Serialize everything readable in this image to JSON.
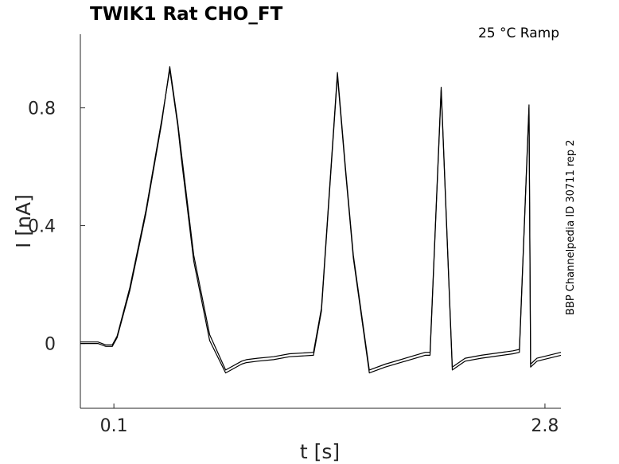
{
  "chart_data": {
    "type": "line",
    "title": "TWIK1  Rat  CHO_FT",
    "annotation": "25 °C  Ramp",
    "side_label": "BBP Channelpedia ID 30711 rep 2",
    "xlabel": "t [s]",
    "ylabel": "I [nA]",
    "xlim": [
      -0.11,
      2.9
    ],
    "ylim": [
      -0.22,
      1.05
    ],
    "x_ticks": [
      0.1,
      2.8
    ],
    "x_tick_labels": [
      "0.1",
      "2.8"
    ],
    "y_ticks": [
      0,
      0.4,
      0.8
    ],
    "y_tick_labels": [
      "0",
      "0.4",
      "0.8"
    ],
    "grid": false,
    "series": [
      {
        "x": [
          -0.11,
          0.0,
          0.05,
          0.09,
          0.12,
          0.2,
          0.3,
          0.4,
          0.45,
          0.5,
          0.52,
          0.6,
          0.7,
          0.8,
          0.9,
          0.93,
          1.0,
          1.1,
          1.2,
          1.35,
          1.4,
          1.5,
          1.55,
          1.6,
          1.7,
          1.8,
          2.05,
          2.08,
          2.15,
          2.22,
          2.3,
          2.4,
          2.6,
          2.64,
          2.7,
          2.71,
          2.75,
          2.9
        ],
        "y": [
          0.0,
          0.0,
          -0.01,
          -0.01,
          0.02,
          0.18,
          0.44,
          0.75,
          0.94,
          0.75,
          0.66,
          0.3,
          0.03,
          -0.09,
          -0.06,
          -0.055,
          -0.05,
          -0.045,
          -0.035,
          -0.03,
          0.12,
          0.92,
          0.6,
          0.3,
          -0.09,
          -0.07,
          -0.03,
          -0.03,
          0.87,
          -0.08,
          -0.05,
          -0.04,
          -0.025,
          -0.02,
          0.81,
          -0.07,
          -0.05,
          -0.03
        ]
      },
      {
        "x": [
          -0.11,
          0.0,
          0.05,
          0.09,
          0.12,
          0.2,
          0.3,
          0.4,
          0.45,
          0.5,
          0.52,
          0.6,
          0.7,
          0.8,
          0.9,
          0.93,
          1.0,
          1.1,
          1.2,
          1.35,
          1.4,
          1.5,
          1.55,
          1.6,
          1.7,
          1.8,
          2.05,
          2.08,
          2.15,
          2.22,
          2.3,
          2.4,
          2.6,
          2.64,
          2.7,
          2.71,
          2.75,
          2.9
        ],
        "y": [
          0.005,
          0.005,
          -0.005,
          -0.005,
          0.025,
          0.19,
          0.45,
          0.76,
          0.93,
          0.74,
          0.64,
          0.28,
          0.01,
          -0.1,
          -0.07,
          -0.065,
          -0.06,
          -0.055,
          -0.045,
          -0.04,
          0.11,
          0.91,
          0.59,
          0.29,
          -0.1,
          -0.08,
          -0.04,
          -0.04,
          0.86,
          -0.09,
          -0.06,
          -0.05,
          -0.035,
          -0.03,
          0.8,
          -0.08,
          -0.06,
          -0.04
        ]
      }
    ]
  }
}
